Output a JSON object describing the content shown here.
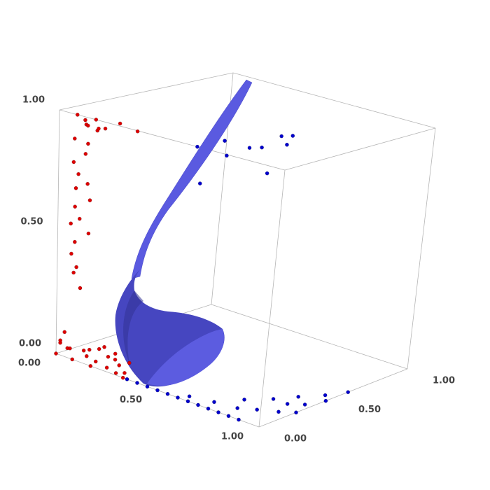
{
  "chart_data": {
    "type": "scatter3d",
    "xlim": [
      0,
      1
    ],
    "ylim": [
      0,
      1
    ],
    "zlim": [
      0,
      1
    ],
    "xticks": [
      {
        "value": 0,
        "label": "0.00"
      },
      {
        "value": 0.5,
        "label": "0.50"
      },
      {
        "value": 1,
        "label": "1.00"
      }
    ],
    "yticks": [
      {
        "value": 0,
        "label": "0.00"
      },
      {
        "value": 0.5,
        "label": "0.50"
      },
      {
        "value": 1,
        "label": "1.00"
      }
    ],
    "zticks": [
      {
        "value": 0,
        "label": "0.00"
      },
      {
        "value": 0.5,
        "label": "0.50"
      },
      {
        "value": 1,
        "label": "1.00"
      }
    ],
    "grid": false,
    "series": [
      {
        "color": "#dd0000",
        "x": [
          0.08,
          0.1,
          0.12,
          0.09,
          0.14,
          0.11,
          0.16,
          0.13,
          0.07,
          0.18,
          0.2,
          0.1,
          0.12,
          0.06,
          0.09,
          0.11,
          0.08,
          0.13,
          0.07,
          0.1,
          0.06,
          0.12,
          0.08,
          0.05,
          0.09,
          0.07,
          0.11,
          0.04,
          0.02,
          0.04,
          0.0,
          0.03,
          0.06,
          0.09,
          0.12,
          0.15,
          0.18,
          0.22,
          0.25,
          0.28,
          0.05,
          0.1,
          0.14,
          0.2,
          0.24,
          0.3,
          0.02,
          0.08,
          0.17,
          0.33
        ],
        "y": [
          0.0,
          0.02,
          0.0,
          0.05,
          0.03,
          0.08,
          0.02,
          0.1,
          0.0,
          0.12,
          0.2,
          0.04,
          0.0,
          0.01,
          0.0,
          0.03,
          0.0,
          0.02,
          0.01,
          0.0,
          0.0,
          0.03,
          0.0,
          0.02,
          0.0,
          0.01,
          0.0,
          0.0,
          0.0,
          0.02,
          0.0,
          0.05,
          0.1,
          0.08,
          0.12,
          0.06,
          0.1,
          0.04,
          0.08,
          0.02,
          0.15,
          0.18,
          0.2,
          0.12,
          0.16,
          0.05,
          0.0,
          0.0,
          0.0,
          0.0
        ],
        "z": [
          1.0,
          0.98,
          0.97,
          0.95,
          0.99,
          0.93,
          0.96,
          0.94,
          0.9,
          0.97,
          0.93,
          0.88,
          0.85,
          0.8,
          0.76,
          0.72,
          0.7,
          0.66,
          0.62,
          0.58,
          0.55,
          0.52,
          0.48,
          0.42,
          0.38,
          0.35,
          0.3,
          0.1,
          0.05,
          0.03,
          0.0,
          0.02,
          0.01,
          0.0,
          0.03,
          0.0,
          0.02,
          0.0,
          0.01,
          0.0,
          0.0,
          0.02,
          0.0,
          0.01,
          0.0,
          0.0,
          0.06,
          0.0,
          0.0,
          0.0
        ]
      },
      {
        "color": "#0000cc",
        "x": [
          0.35,
          0.4,
          0.45,
          0.5,
          0.55,
          0.6,
          0.65,
          0.7,
          0.75,
          0.8,
          0.85,
          0.9,
          0.62,
          0.72,
          0.82,
          0.88,
          0.95,
          1.0,
          0.92,
          0.97,
          1.0,
          0.85,
          0.9,
          0.96,
          1.0,
          0.78,
          0.4,
          0.45,
          0.5,
          0.55,
          0.6,
          0.42,
          0.52,
          0.35,
          0.58,
          0.62
        ],
        "y": [
          0.0,
          0.0,
          0.0,
          0.0,
          0.0,
          0.0,
          0.0,
          0.0,
          0.0,
          0.0,
          0.0,
          0.0,
          0.05,
          0.08,
          0.1,
          0.15,
          0.2,
          0.25,
          0.3,
          0.35,
          0.45,
          0.3,
          0.4,
          0.5,
          0.6,
          0.2,
          0.3,
          0.4,
          0.35,
          0.5,
          0.55,
          0.6,
          0.7,
          0.4,
          0.65,
          0.45
        ],
        "z": [
          0.0,
          0.0,
          0.0,
          0.0,
          0.0,
          0.0,
          0.0,
          0.0,
          0.0,
          0.0,
          0.0,
          0.0,
          0.0,
          0.0,
          0.0,
          0.0,
          0.0,
          0.0,
          0.0,
          0.0,
          0.0,
          0.0,
          0.0,
          0.0,
          0.0,
          0.0,
          0.9,
          0.92,
          0.88,
          0.9,
          0.95,
          0.85,
          0.87,
          0.72,
          0.93,
          0.82
        ]
      }
    ]
  }
}
